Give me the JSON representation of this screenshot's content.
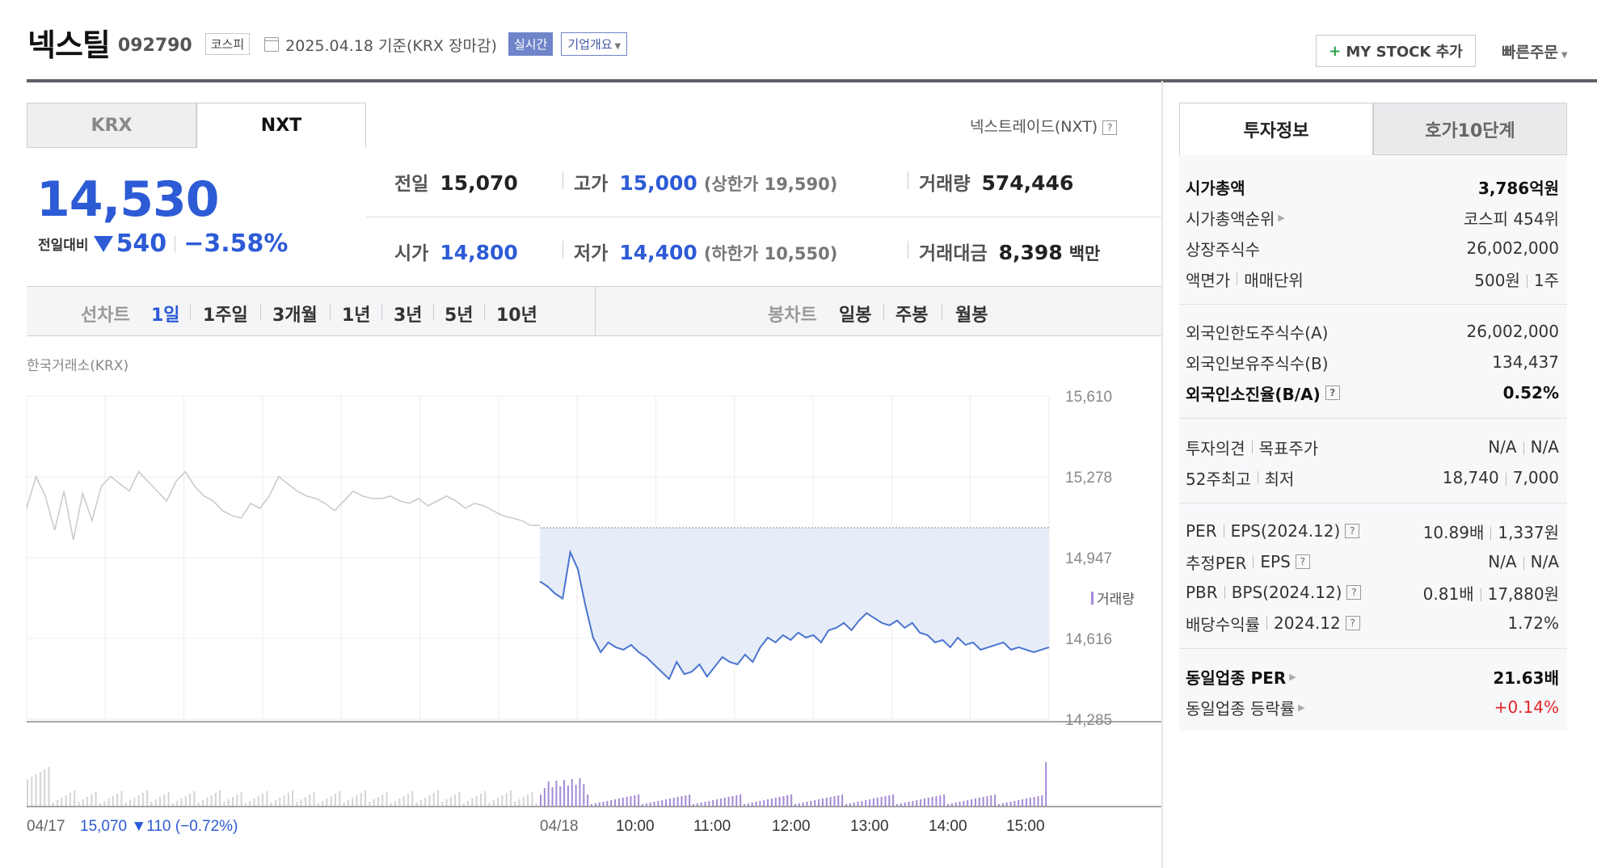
{
  "header": {
    "name": "넥스틸",
    "code": "092790",
    "market": "코스피",
    "asof": "2025.04.18  기준(KRX 장마감)",
    "realtime": "실시간",
    "company_info": "기업개요",
    "mystock": "MY STOCK 추가",
    "quick_order": "빠른주문"
  },
  "tabs": {
    "krx": "KRX",
    "nxt": "NXT",
    "nxt_full": "넥스트레이드(NXT)"
  },
  "price": {
    "current": "14,530",
    "change_label": "전일대비",
    "change": "540",
    "change_pct": "−3.58%"
  },
  "stats": {
    "prev_close_label": "전일",
    "prev_close": "15,070",
    "high_label": "고가",
    "high": "15,000",
    "upper_limit": "(상한가 19,590)",
    "volume_label": "거래량",
    "volume": "574,446",
    "open_label": "시가",
    "open": "14,800",
    "low_label": "저가",
    "low": "14,400",
    "lower_limit": "(하한가 10,550)",
    "value_label": "거래대금",
    "value": "8,398",
    "value_unit": "백만"
  },
  "periods": {
    "line_chart": "선차트",
    "items": [
      "1일",
      "1주일",
      "3개월",
      "1년",
      "3년",
      "5년",
      "10년"
    ],
    "candle_chart": "봉차트",
    "candle_items": [
      "일봉",
      "주봉",
      "월봉"
    ]
  },
  "exchange_label": "한국거래소(KRX)",
  "chart_data": {
    "type": "line",
    "y_ticks": [
      "15,610",
      "15,278",
      "14,947",
      "14,616",
      "14,285"
    ],
    "ylim": [
      14285,
      15610
    ],
    "x_ticks": [
      "04/17",
      "04/18",
      "10:00",
      "11:00",
      "12:00",
      "13:00",
      "14:00",
      "15:00"
    ],
    "volume_label": "거래량",
    "prev_day_summary": {
      "date": "04/17",
      "close": "15,070",
      "change": "▼110",
      "pct": "(−0.72%)"
    },
    "prev_close_ref": 15070,
    "series": [
      {
        "values_prev_day": [
          15150,
          15280,
          15200,
          15060,
          15220,
          15020,
          15210,
          15100,
          15240,
          15280,
          15250,
          15220,
          15300,
          15260,
          15220,
          15180,
          15260,
          15300,
          15240,
          15200,
          15180,
          15140,
          15120,
          15110,
          15170,
          15150,
          15200,
          15280,
          15250,
          15220,
          15200,
          15190,
          15170,
          15140,
          15180,
          15220,
          15200,
          15190,
          15190,
          15200,
          15180,
          15170,
          15190,
          15160,
          15180,
          15200,
          15180,
          15150,
          15170,
          15160,
          15140,
          15120,
          15110,
          15100,
          15080,
          15080
        ],
        "values": [
          14850,
          14830,
          14800,
          14780,
          14970,
          14900,
          14750,
          14620,
          14560,
          14600,
          14580,
          14570,
          14590,
          14560,
          14540,
          14510,
          14480,
          14450,
          14520,
          14470,
          14480,
          14510,
          14460,
          14500,
          14540,
          14520,
          14510,
          14550,
          14520,
          14580,
          14620,
          14600,
          14630,
          14610,
          14640,
          14620,
          14630,
          14600,
          14650,
          14660,
          14680,
          14650,
          14690,
          14720,
          14700,
          14680,
          14670,
          14690,
          14660,
          14680,
          14640,
          14630,
          14600,
          14610,
          14580,
          14620,
          14590,
          14600,
          14570,
          14580,
          14590,
          14600,
          14570,
          14580,
          14570,
          14560,
          14570,
          14580
        ]
      }
    ]
  },
  "right": {
    "tab_info": "투자정보",
    "tab_hoga": "호가10단계",
    "market_cap_label": "시가총액",
    "market_cap": "3,786억원",
    "cap_rank_label": "시가총액순위",
    "cap_rank": "코스피 454위",
    "shares_label": "상장주식수",
    "shares": "26,002,000",
    "par_label": "액면가",
    "unit_label": "매매단위",
    "par": "500원",
    "unit": "1주",
    "foreign_limit_label": "외국인한도주식수(A)",
    "foreign_limit": "26,002,000",
    "foreign_hold_label": "외국인보유주식수(B)",
    "foreign_hold": "134,437",
    "foreign_ratio_label": "외국인소진율(B/A)",
    "foreign_ratio": "0.52%",
    "opinion_label": "투자의견",
    "target_label": "목표주가",
    "opinion": "N/A",
    "target": "N/A",
    "w52_high_label": "52주최고",
    "w52_low_label": "최저",
    "w52_high": "18,740",
    "w52_low": "7,000",
    "per_label": "PER",
    "eps_label": "EPS(2024.12)",
    "per": "10.89배",
    "eps": "1,337원",
    "est_per_label": "추정PER",
    "est_eps_label": "EPS",
    "est_per": "N/A",
    "est_eps": "N/A",
    "pbr_label": "PBR",
    "bps_label": "BPS(2024.12)",
    "pbr": "0.81배",
    "bps": "17,880원",
    "div_label": "배당수익률",
    "div_date": "2024.12",
    "div": "1.72%",
    "ind_per_label": "동일업종 PER",
    "ind_per": "21.63배",
    "ind_chg_label": "동일업종 등락률",
    "ind_chg": "+0.14%"
  }
}
